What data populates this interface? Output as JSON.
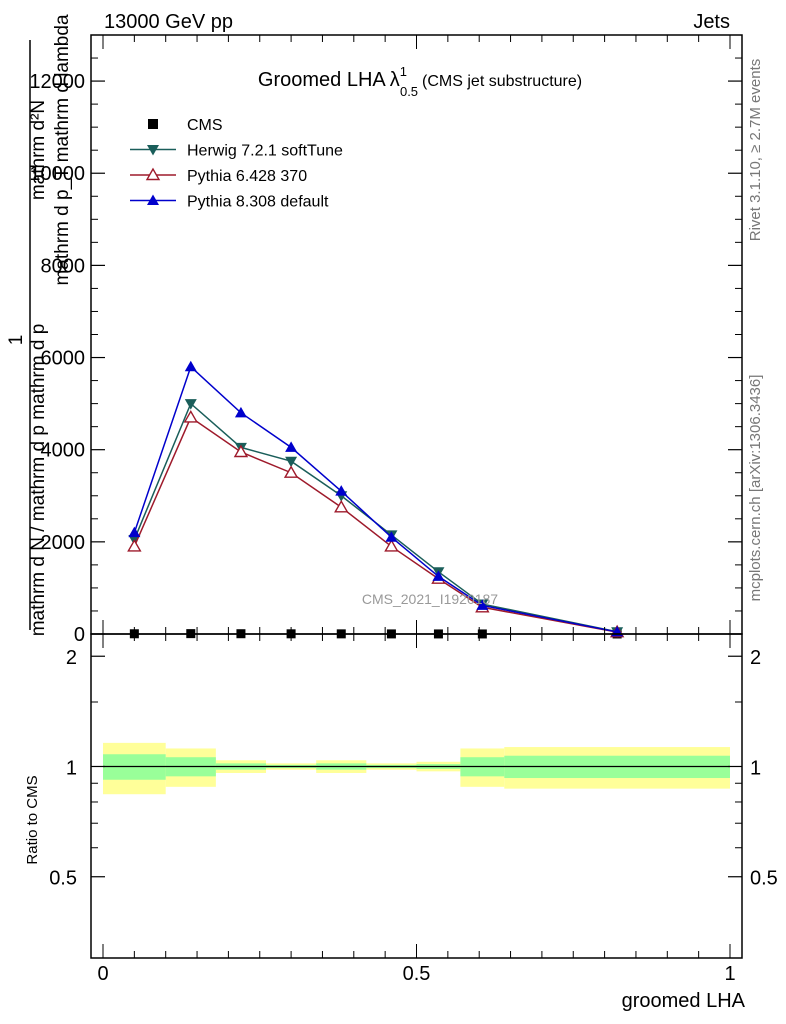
{
  "header": {
    "energy_label": "13000 GeV pp",
    "category_label": "Jets"
  },
  "side_text": {
    "rivet": "Rivet 3.1.10, ≥ 2.7M events",
    "mcplots": "mcplots.cern.ch [arXiv:1306.3436]"
  },
  "watermark": "CMS_2021_I1920187",
  "chart_data": [
    {
      "type": "line",
      "title": "Groomed LHA",
      "title_symbol": "λ",
      "title_superscript": "1",
      "title_subscript": "0.5",
      "title_note": "(CMS jet substructure)",
      "ylabel_numerator": "mathrm d²N",
      "ylabel_denominator": "mathrm d p_T mathrm d lambda",
      "ylabel_prefactor_num": "1",
      "ylabel_prefactor_den": "mathrm d N / mathrm d p mathrm d p",
      "xlim": [
        0,
        1
      ],
      "ylim": [
        0,
        13000
      ],
      "ytick_values": [
        0,
        2000,
        4000,
        6000,
        8000,
        10000,
        12000
      ],
      "ytick_labels": [
        "0",
        "2000",
        "4000",
        "6000",
        "8000",
        "10000",
        "12000"
      ],
      "legend_position": "top-left",
      "x_bin_edges": [
        0,
        0.1,
        0.18,
        0.26,
        0.34,
        0.42,
        0.5,
        0.57,
        0.64,
        1.0
      ],
      "series": [
        {
          "name": "CMS",
          "marker": "square",
          "color": "#000000",
          "x": [
            0.05,
            0.14,
            0.22,
            0.3,
            0.38,
            0.46,
            0.535,
            0.605,
            0.82
          ],
          "values": [
            5,
            8,
            6,
            4,
            3,
            2,
            1.5,
            1,
            0.5
          ]
        },
        {
          "name": "Herwig 7.2.1 softTune",
          "marker": "triangle-down",
          "color": "#1a5e5a",
          "x": [
            0.05,
            0.14,
            0.22,
            0.3,
            0.38,
            0.46,
            0.535,
            0.605,
            0.82
          ],
          "values": [
            2050,
            5000,
            4050,
            3750,
            3000,
            2150,
            1350,
            650,
            50
          ]
        },
        {
          "name": "Pythia 6.428 370",
          "marker": "triangle-up-open",
          "color": "#9e1a2b",
          "x": [
            0.05,
            0.14,
            0.22,
            0.3,
            0.38,
            0.46,
            0.535,
            0.605,
            0.82
          ],
          "values": [
            1900,
            4700,
            3950,
            3500,
            2750,
            1900,
            1200,
            580,
            40
          ]
        },
        {
          "name": "Pythia 8.308 default",
          "marker": "triangle-up",
          "color": "#0000cc",
          "x": [
            0.05,
            0.14,
            0.22,
            0.3,
            0.38,
            0.46,
            0.535,
            0.605,
            0.82
          ],
          "values": [
            2200,
            5800,
            4800,
            4050,
            3100,
            2100,
            1250,
            620,
            45
          ]
        }
      ]
    },
    {
      "type": "area",
      "xlabel": "groomed LHA",
      "ylabel": "Ratio to CMS",
      "xlim": [
        0,
        1
      ],
      "ylim": [
        0.3,
        2.3
      ],
      "ytick_values": [
        0.5,
        1,
        2
      ],
      "ytick_labels": [
        "0.5",
        "1",
        "2"
      ],
      "xtick_values": [
        0,
        0.5,
        1
      ],
      "xtick_labels": [
        "0",
        "0.5",
        "1"
      ],
      "reference_line": 1,
      "band_colors": {
        "stat": "#99ff99",
        "total": "#ffff99"
      },
      "x_bin_edges": [
        0,
        0.1,
        0.18,
        0.26,
        0.34,
        0.42,
        0.5,
        0.57,
        0.64,
        1.0
      ],
      "bands": [
        {
          "name": "yellow",
          "lower": [
            0.84,
            0.88,
            0.96,
            0.98,
            0.96,
            0.98,
            0.97,
            0.88,
            0.87
          ],
          "upper": [
            1.16,
            1.12,
            1.04,
            1.02,
            1.04,
            1.02,
            1.03,
            1.12,
            1.13
          ]
        },
        {
          "name": "green",
          "lower": [
            0.92,
            0.94,
            0.98,
            0.99,
            0.98,
            0.99,
            0.985,
            0.94,
            0.93
          ],
          "upper": [
            1.08,
            1.06,
            1.02,
            1.01,
            1.02,
            1.01,
            1.015,
            1.06,
            1.07
          ]
        }
      ]
    }
  ]
}
